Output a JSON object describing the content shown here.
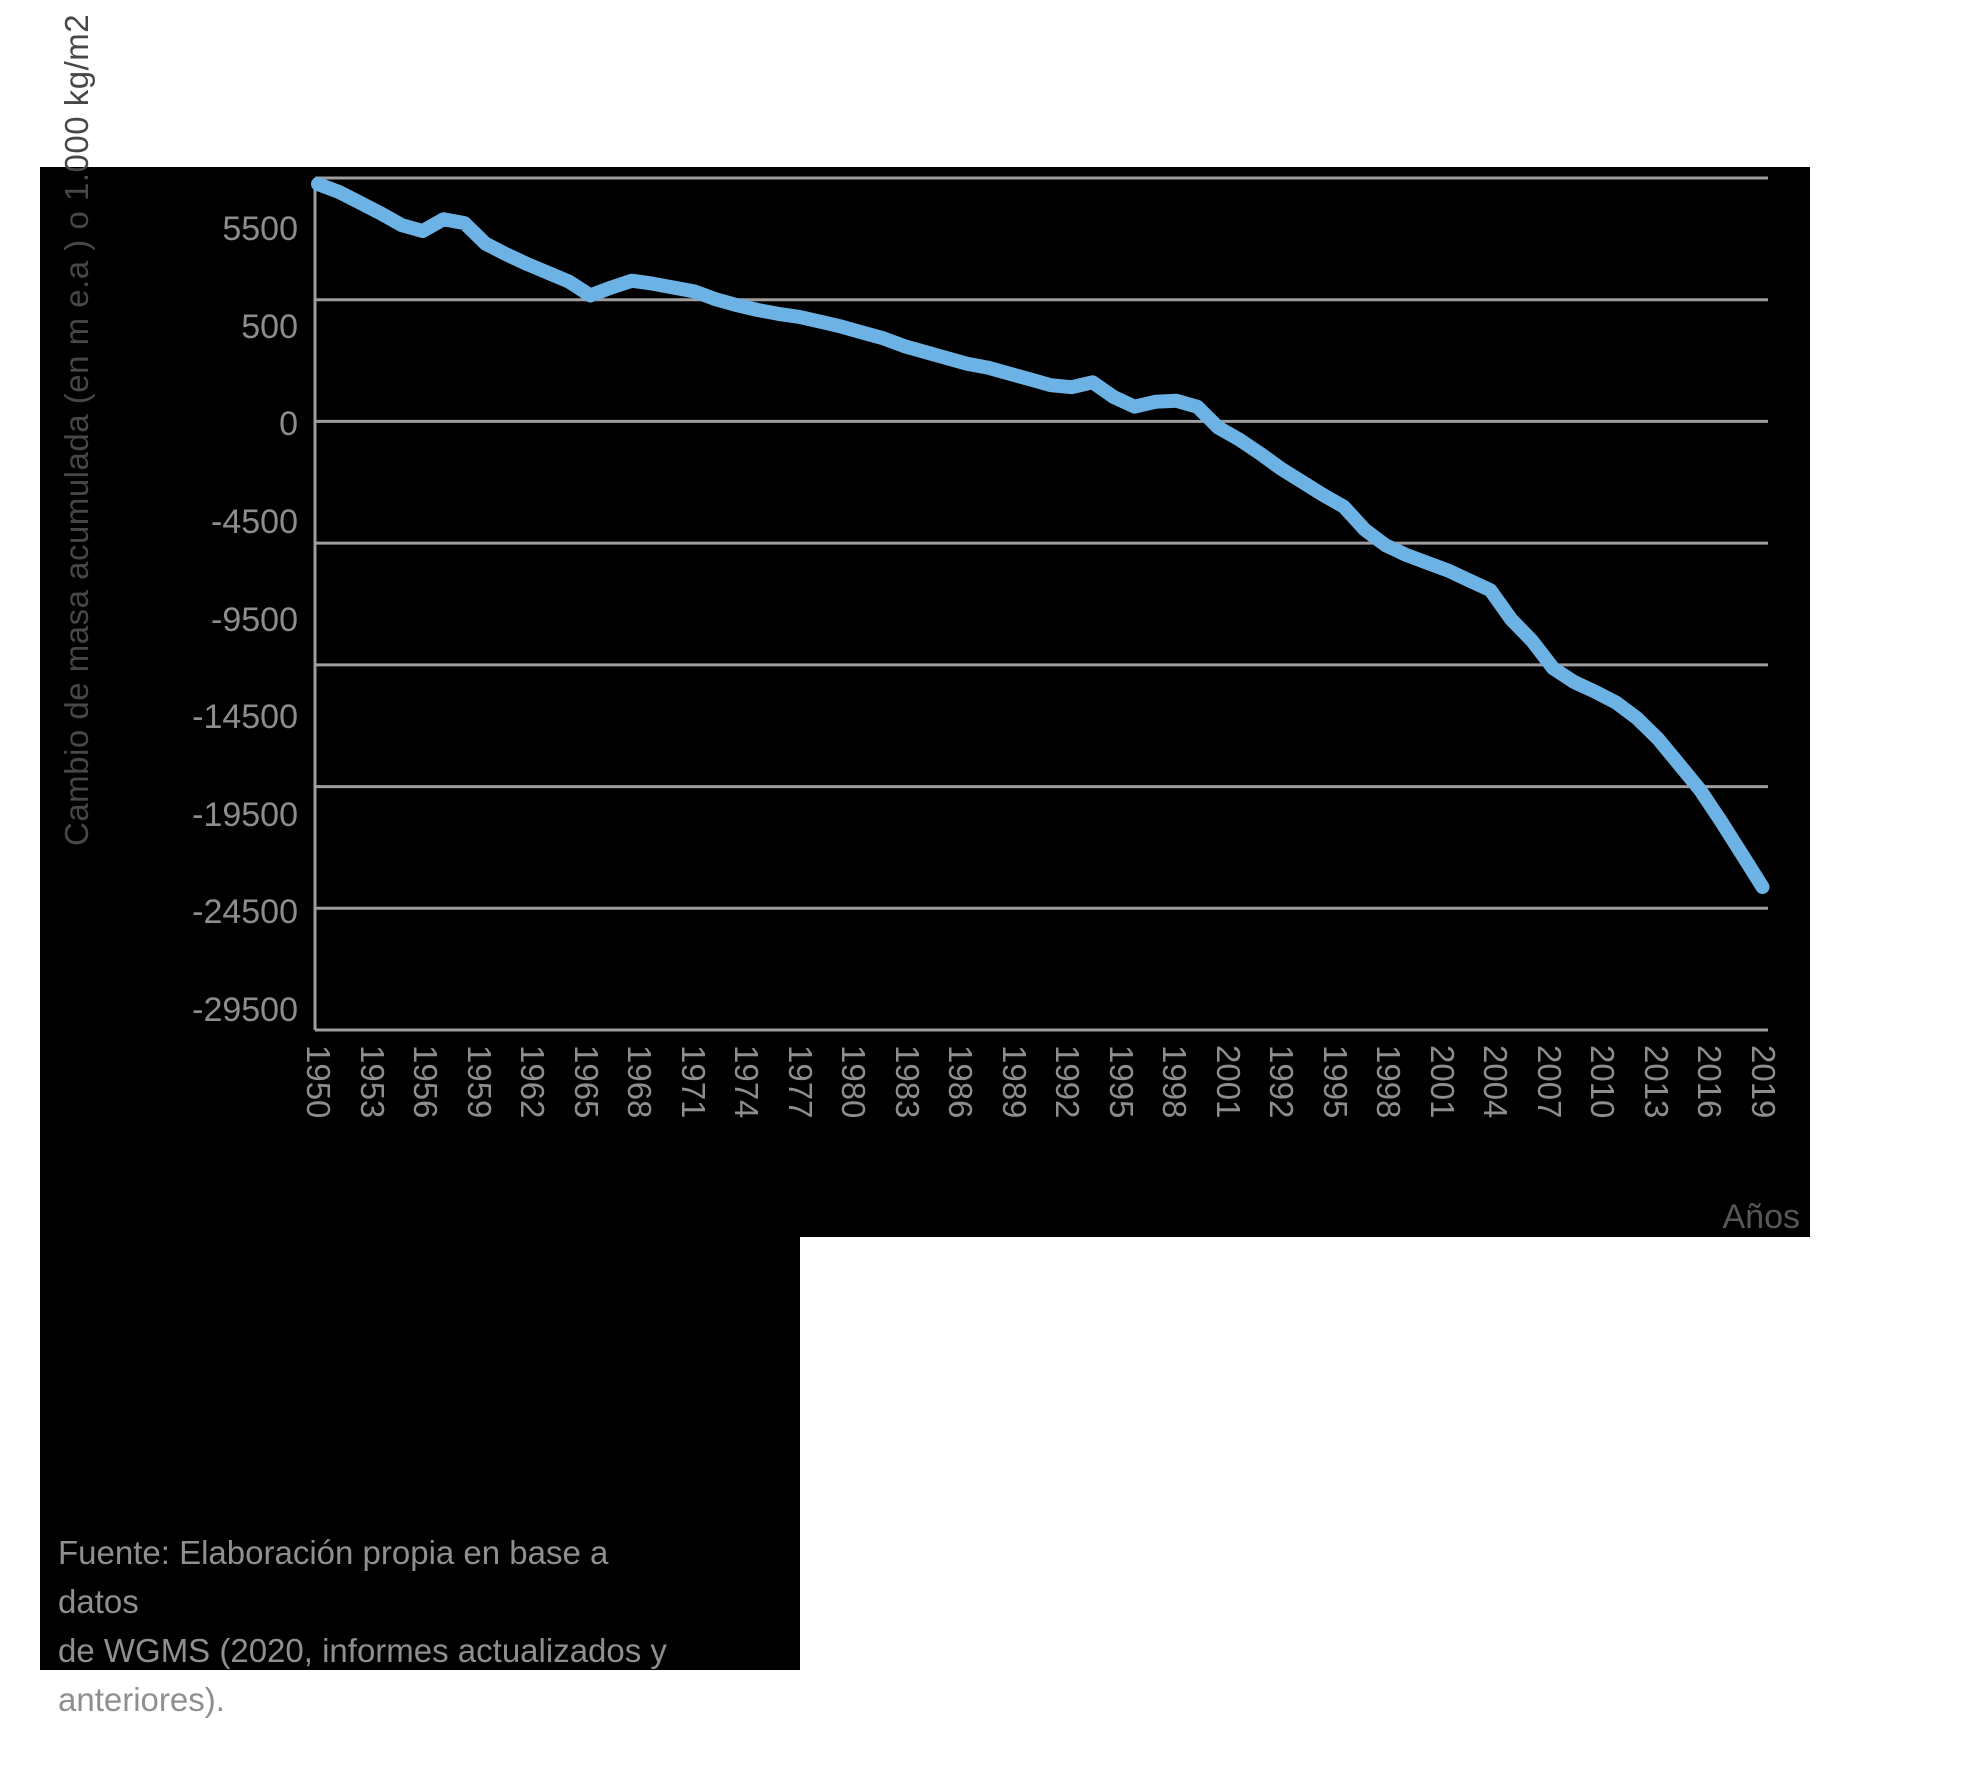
{
  "page": {
    "background_color": "#ffffff",
    "panel_color": "#000000"
  },
  "chart": {
    "y_axis_title": "Cambio de masa acumulada (en m e.a ) o 1.000 kg/m2",
    "x_axis_title": "Años",
    "y_tick_labels": [
      "5500",
      "500",
      "0",
      "-4500",
      "-9500",
      "-14500",
      "-19500",
      "-24500",
      "-29500"
    ],
    "x_tick_labels": [
      "1950",
      "1953",
      "1956",
      "1959",
      "1962",
      "1965",
      "1968",
      "1971",
      "1974",
      "1977",
      "1980",
      "1983",
      "1986",
      "1989",
      "1992",
      "1995",
      "1998",
      "2001",
      "1992",
      "1995",
      "1998",
      "2001",
      "2004",
      "2007",
      "2010",
      "2013",
      "2016",
      "2019"
    ],
    "colors": {
      "line": "#6cb2e5",
      "grid": "#9e9e9e",
      "tick_label": "#8d8d8d",
      "y_title": "#474747",
      "x_title": "#575757",
      "source_text": "#8f8f8f"
    }
  },
  "source": {
    "lines": [
      "Fuente: Elaboración propia en base a datos",
      "de WGMS (2020, informes actualizados y",
      "anteriores)."
    ]
  },
  "chart_data": {
    "type": "line",
    "title": "",
    "xlabel": "Años",
    "ylabel": "Cambio de masa acumulada (en m e.a ) o 1.000 kg/m2",
    "legend": "none",
    "grid": "horizontal",
    "y_axis_tick_values": [
      5500,
      500,
      0,
      -4500,
      -9500,
      -14500,
      -19500,
      -24500,
      -29500
    ],
    "y_axis_note": "las etiquetas del eje Y del gráfico original están distribuidas uniformemente aunque sus valores no son equidistantes",
    "x_tick_labels_as_shown": [
      "1950",
      "1953",
      "1956",
      "1959",
      "1962",
      "1965",
      "1968",
      "1971",
      "1974",
      "1977",
      "1980",
      "1983",
      "1986",
      "1989",
      "1992",
      "1995",
      "1998",
      "2001",
      "1992",
      "1995",
      "1998",
      "2001",
      "2004",
      "2007",
      "2010",
      "2013",
      "2016",
      "2019"
    ],
    "x": [
      1950,
      1951,
      1952,
      1953,
      1954,
      1955,
      1956,
      1957,
      1958,
      1959,
      1960,
      1961,
      1962,
      1963,
      1964,
      1965,
      1966,
      1967,
      1968,
      1969,
      1970,
      1971,
      1972,
      1973,
      1974,
      1975,
      1976,
      1977,
      1978,
      1979,
      1980,
      1981,
      1982,
      1983,
      1984,
      1985,
      1986,
      1987,
      1988,
      1989,
      1990,
      1991,
      1992,
      1993,
      1994,
      1995,
      1996,
      1997,
      1998,
      1999,
      2000,
      2001,
      2002,
      2003,
      2004,
      2005,
      2006,
      2007,
      2008,
      2009,
      2010,
      2011,
      2012,
      2013,
      2014,
      2015,
      2016,
      2017,
      2018,
      2019
    ],
    "values": [
      7800,
      7400,
      6850,
      6300,
      5700,
      5400,
      6000,
      5800,
      4750,
      4200,
      3700,
      3250,
      2800,
      2100,
      2500,
      2850,
      2700,
      2500,
      2300,
      1900,
      1600,
      1350,
      1150,
      1000,
      750,
      500,
      470,
      440,
      400,
      370,
      340,
      310,
      290,
      260,
      230,
      200,
      190,
      215,
      140,
      90,
      115,
      120,
      90,
      -150,
      -700,
      -1350,
      -2050,
      -2650,
      -3250,
      -3800,
      -4900,
      -5700,
      -6200,
      -6600,
      -7000,
      -7500,
      -8000,
      -9500,
      -10600,
      -12000,
      -12700,
      -13200,
      -13750,
      -14550,
      -15600,
      -16900,
      -18200,
      -19800,
      -21500,
      -23200
    ]
  }
}
